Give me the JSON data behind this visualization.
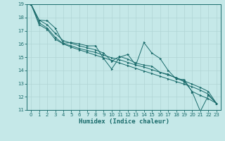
{
  "title": "",
  "xlabel": "Humidex (Indice chaleur)",
  "xlim": [
    -0.5,
    23.5
  ],
  "ylim": [
    11,
    19
  ],
  "xticks": [
    0,
    1,
    2,
    3,
    4,
    5,
    6,
    7,
    8,
    9,
    10,
    11,
    12,
    13,
    14,
    15,
    16,
    17,
    18,
    19,
    20,
    21,
    22,
    23
  ],
  "yticks": [
    11,
    12,
    13,
    14,
    15,
    16,
    17,
    18,
    19
  ],
  "bg_color": "#c5e8e8",
  "grid_color": "#b0d5d5",
  "line_color": "#1a6b6b",
  "series": [
    [
      19.0,
      17.8,
      17.75,
      17.2,
      16.05,
      16.1,
      16.0,
      15.85,
      15.85,
      14.9,
      14.1,
      15.0,
      15.2,
      14.4,
      16.1,
      15.3,
      14.9,
      14.0,
      13.35,
      13.3,
      12.35,
      10.9,
      12.1,
      11.5
    ],
    [
      19.0,
      17.8,
      17.45,
      16.8,
      16.25,
      16.05,
      15.85,
      15.7,
      15.55,
      15.3,
      14.7,
      15.05,
      14.85,
      14.55,
      14.4,
      14.3,
      13.85,
      13.7,
      13.4,
      13.15,
      12.4,
      12.1,
      11.85,
      11.5
    ],
    [
      19.0,
      17.6,
      17.2,
      16.5,
      16.0,
      15.85,
      15.65,
      15.5,
      15.35,
      15.15,
      14.95,
      14.8,
      14.6,
      14.4,
      14.25,
      14.05,
      13.85,
      13.65,
      13.45,
      13.2,
      12.95,
      12.7,
      12.4,
      11.5
    ],
    [
      19.0,
      17.45,
      17.1,
      16.35,
      16.0,
      15.75,
      15.55,
      15.35,
      15.15,
      14.95,
      14.75,
      14.55,
      14.35,
      14.15,
      13.95,
      13.75,
      13.55,
      13.35,
      13.15,
      12.95,
      12.75,
      12.5,
      12.2,
      11.5
    ]
  ]
}
